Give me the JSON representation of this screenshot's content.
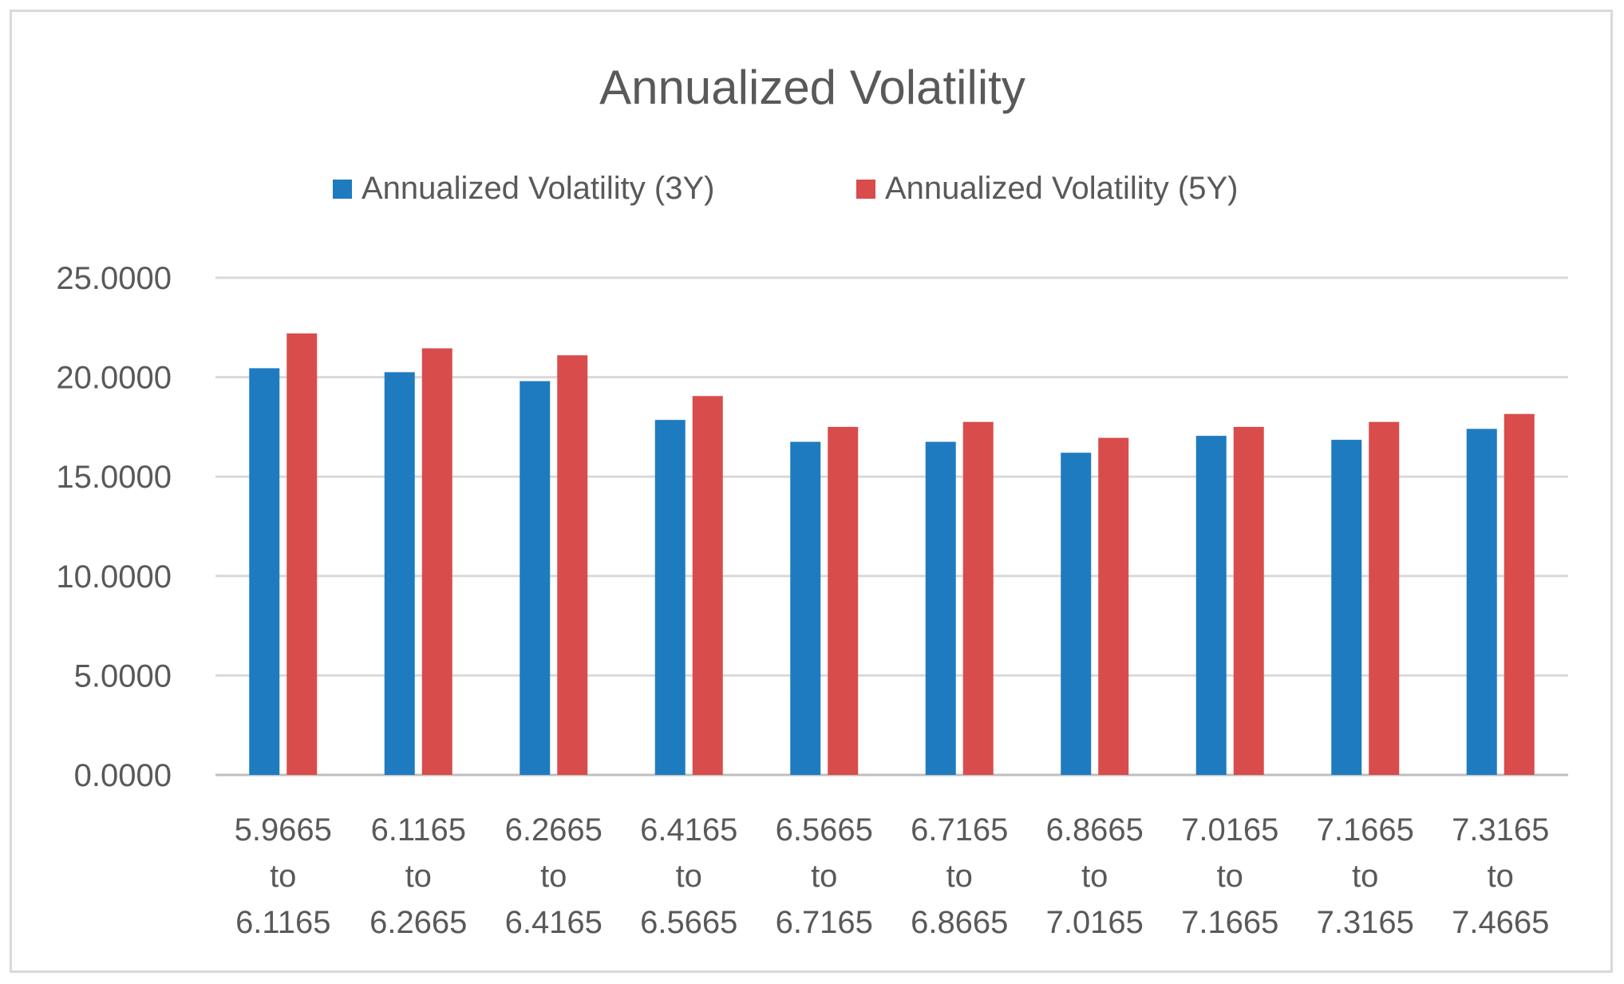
{
  "chart_data": {
    "type": "bar",
    "title": "Annualized Volatility",
    "xlabel": "",
    "ylabel": "",
    "ylim": [
      0,
      25
    ],
    "yticks": [
      "0.0000",
      "5.0000",
      "10.0000",
      "15.0000",
      "20.0000",
      "25.0000"
    ],
    "ytick_values": [
      0,
      5,
      10,
      15,
      20,
      25
    ],
    "legend_position": "top",
    "grid": true,
    "categories": [
      [
        "5.9665",
        "to",
        "6.1165"
      ],
      [
        "6.1165",
        "to",
        "6.2665"
      ],
      [
        "6.2665",
        "to",
        "6.4165"
      ],
      [
        "6.4165",
        "to",
        "6.5665"
      ],
      [
        "6.5665",
        "to",
        "6.7165"
      ],
      [
        "6.7165",
        "to",
        "6.8665"
      ],
      [
        "6.8665",
        "to",
        "7.0165"
      ],
      [
        "7.0165",
        "to",
        "7.1665"
      ],
      [
        "7.1665",
        "to",
        "7.3165"
      ],
      [
        "7.3165",
        "to",
        "7.4665"
      ]
    ],
    "series": [
      {
        "name": "Annualized Volatility (3Y)",
        "color": "#1f7bbf",
        "values": [
          20.45,
          20.25,
          19.8,
          17.85,
          16.75,
          16.75,
          16.2,
          17.05,
          16.85,
          17.4
        ]
      },
      {
        "name": "Annualized Volatility (5Y)",
        "color": "#d94c4c",
        "values": [
          22.2,
          21.45,
          21.1,
          19.05,
          17.5,
          17.75,
          16.95,
          17.5,
          17.75,
          18.15
        ]
      }
    ]
  }
}
